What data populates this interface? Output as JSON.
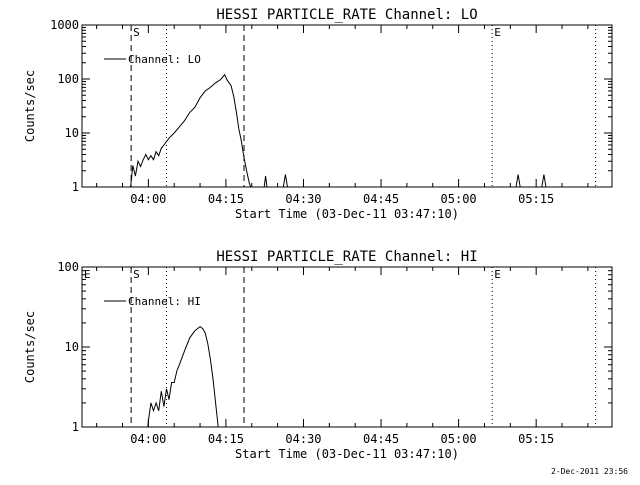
{
  "chart_data": [
    {
      "type": "line",
      "title": "HESSI PARTICLE_RATE Channel: LO",
      "xlabel": "Start Time (03-Dec-11 03:47:10)",
      "ylabel": "Counts/sec",
      "yscale": "log",
      "xlim": [
        "03:47:10",
        "05:29:40"
      ],
      "ylim": [
        1,
        1000
      ],
      "x_ticks": [
        "04:00",
        "04:15",
        "04:30",
        "04:45",
        "05:00",
        "05:15"
      ],
      "y_ticks": [
        "1",
        "10",
        "100",
        "1000"
      ],
      "grid": false,
      "legend": "top-left",
      "markers": [
        {
          "time": "03:56:40",
          "style": "dashed",
          "label": "S"
        },
        {
          "time": "04:03:30",
          "style": "dotted",
          "label": ""
        },
        {
          "time": "04:18:30",
          "style": "dashed",
          "label": ""
        },
        {
          "time": "05:06:30",
          "style": "dotted",
          "label": "E"
        },
        {
          "time": "05:26:30",
          "style": "dotted",
          "label": ""
        }
      ],
      "series": [
        {
          "name": "Channel: LO",
          "points": [
            [
              "03:56:30",
              0.3
            ],
            [
              "03:57:00",
              2.5
            ],
            [
              "03:57:30",
              1.6
            ],
            [
              "03:58:00",
              3.0
            ],
            [
              "03:58:30",
              2.4
            ],
            [
              "03:59:00",
              3.2
            ],
            [
              "03:59:30",
              4.0
            ],
            [
              "04:00:00",
              3.2
            ],
            [
              "04:00:30",
              3.8
            ],
            [
              "04:01:00",
              3.2
            ],
            [
              "04:01:30",
              4.5
            ],
            [
              "04:02:00",
              3.8
            ],
            [
              "04:02:30",
              5.2
            ],
            [
              "04:03:00",
              6.0
            ],
            [
              "04:04:00",
              8.0
            ],
            [
              "04:05:00",
              10.0
            ],
            [
              "04:06:00",
              13.0
            ],
            [
              "04:07:00",
              17.0
            ],
            [
              "04:08:00",
              24.0
            ],
            [
              "04:09:00",
              30.0
            ],
            [
              "04:10:00",
              45.0
            ],
            [
              "04:11:00",
              60.0
            ],
            [
              "04:12:00",
              70.0
            ],
            [
              "04:13:00",
              85.0
            ],
            [
              "04:14:00",
              98.0
            ],
            [
              "04:14:45",
              120.0
            ],
            [
              "04:15:15",
              95.0
            ],
            [
              "04:16:00",
              75.0
            ],
            [
              "04:16:30",
              48.0
            ],
            [
              "04:17:00",
              25.0
            ],
            [
              "04:17:30",
              12.0
            ],
            [
              "04:18:00",
              7.0
            ],
            [
              "04:18:30",
              3.5
            ],
            [
              "04:19:00",
              2.0
            ],
            [
              "04:19:30",
              1.2
            ],
            [
              "04:20:00",
              0.3
            ],
            [
              "04:22:20",
              0.3
            ],
            [
              "04:22:40",
              1.6
            ],
            [
              "04:23:00",
              0.3
            ],
            [
              "04:26:00",
              0.3
            ],
            [
              "04:26:30",
              1.7
            ],
            [
              "04:27:00",
              0.3
            ],
            [
              "05:11:00",
              0.3
            ],
            [
              "05:11:30",
              1.7
            ],
            [
              "05:12:00",
              0.3
            ],
            [
              "05:16:00",
              0.3
            ],
            [
              "05:16:30",
              1.7
            ],
            [
              "05:17:00",
              0.3
            ]
          ]
        }
      ]
    },
    {
      "type": "line",
      "title": "HESSI PARTICLE_RATE Channel: HI",
      "xlabel": "Start Time (03-Dec-11 03:47:10)",
      "ylabel": "Counts/sec",
      "yscale": "log",
      "xlim": [
        "03:47:10",
        "05:29:40"
      ],
      "ylim": [
        1,
        100
      ],
      "x_ticks": [
        "04:00",
        "04:15",
        "04:30",
        "04:45",
        "05:00",
        "05:15"
      ],
      "y_ticks": [
        "1",
        "10",
        "100"
      ],
      "grid": false,
      "legend": "top-left",
      "markers": [
        {
          "time": "03:47:10",
          "style": "dashed",
          "label": "E"
        },
        {
          "time": "03:56:40",
          "style": "dashed",
          "label": "S"
        },
        {
          "time": "04:03:30",
          "style": "dotted",
          "label": ""
        },
        {
          "time": "04:18:30",
          "style": "dashed",
          "label": ""
        },
        {
          "time": "05:06:30",
          "style": "dotted",
          "label": "E"
        },
        {
          "time": "05:26:30",
          "style": "dotted",
          "label": ""
        }
      ],
      "series": [
        {
          "name": "Channel: HI",
          "points": [
            [
              "03:59:50",
              0.3
            ],
            [
              "04:00:00",
              1.2
            ],
            [
              "04:00:30",
              2.0
            ],
            [
              "04:01:00",
              1.6
            ],
            [
              "04:01:30",
              2.0
            ],
            [
              "04:02:00",
              1.6
            ],
            [
              "04:02:30",
              2.8
            ],
            [
              "04:03:00",
              1.8
            ],
            [
              "04:03:30",
              3.0
            ],
            [
              "04:04:00",
              2.2
            ],
            [
              "04:04:30",
              3.6
            ],
            [
              "04:05:00",
              3.6
            ],
            [
              "04:05:30",
              5.0
            ],
            [
              "04:06:00",
              6.0
            ],
            [
              "04:07:00",
              9.0
            ],
            [
              "04:08:00",
              13.0
            ],
            [
              "04:09:00",
              16.0
            ],
            [
              "04:10:00",
              18.0
            ],
            [
              "04:10:30",
              17.0
            ],
            [
              "04:11:00",
              15.0
            ],
            [
              "04:11:30",
              11.0
            ],
            [
              "04:12:00",
              7.0
            ],
            [
              "04:12:30",
              4.0
            ],
            [
              "04:13:00",
              2.0
            ],
            [
              "04:13:30",
              1.0
            ],
            [
              "04:14:00",
              0.3
            ]
          ]
        }
      ]
    }
  ],
  "footer": {
    "timestamp": "2-Dec-2011 23:56"
  }
}
